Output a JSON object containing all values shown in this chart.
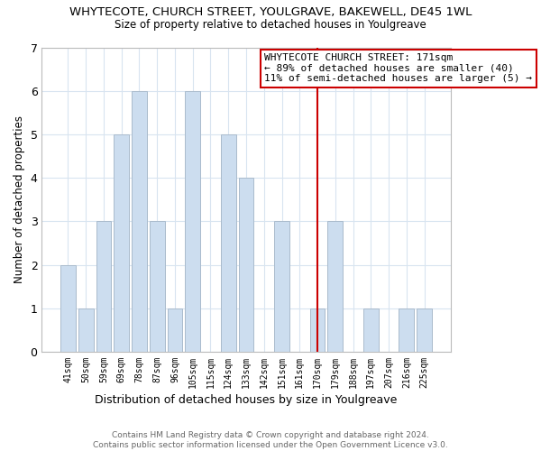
{
  "title": "WHYTECOTE, CHURCH STREET, YOULGRAVE, BAKEWELL, DE45 1WL",
  "subtitle": "Size of property relative to detached houses in Youlgreave",
  "xlabel": "Distribution of detached houses by size in Youlgreave",
  "ylabel": "Number of detached properties",
  "footer_line1": "Contains HM Land Registry data © Crown copyright and database right 2024.",
  "footer_line2": "Contains public sector information licensed under the Open Government Licence v3.0.",
  "bin_labels": [
    "41sqm",
    "50sqm",
    "59sqm",
    "69sqm",
    "78sqm",
    "87sqm",
    "96sqm",
    "105sqm",
    "115sqm",
    "124sqm",
    "133sqm",
    "142sqm",
    "151sqm",
    "161sqm",
    "170sqm",
    "179sqm",
    "188sqm",
    "197sqm",
    "207sqm",
    "216sqm",
    "225sqm"
  ],
  "bar_values": [
    2,
    1,
    3,
    5,
    6,
    3,
    1,
    6,
    0,
    5,
    4,
    0,
    3,
    0,
    1,
    3,
    0,
    1,
    0,
    1,
    1
  ],
  "bar_color": "#ccddef",
  "bar_edge_color": "#aabbcc",
  "reference_line_color": "#cc0000",
  "ylim": [
    0,
    7
  ],
  "yticks": [
    0,
    1,
    2,
    3,
    4,
    5,
    6,
    7
  ],
  "annotation_title": "WHYTECOTE CHURCH STREET: 171sqm",
  "annotation_line1": "← 89% of detached houses are smaller (40)",
  "annotation_line2": "11% of semi-detached houses are larger (5) →",
  "background_color": "#ffffff",
  "grid_color": "#d8e4f0",
  "ref_bar_index": 14
}
